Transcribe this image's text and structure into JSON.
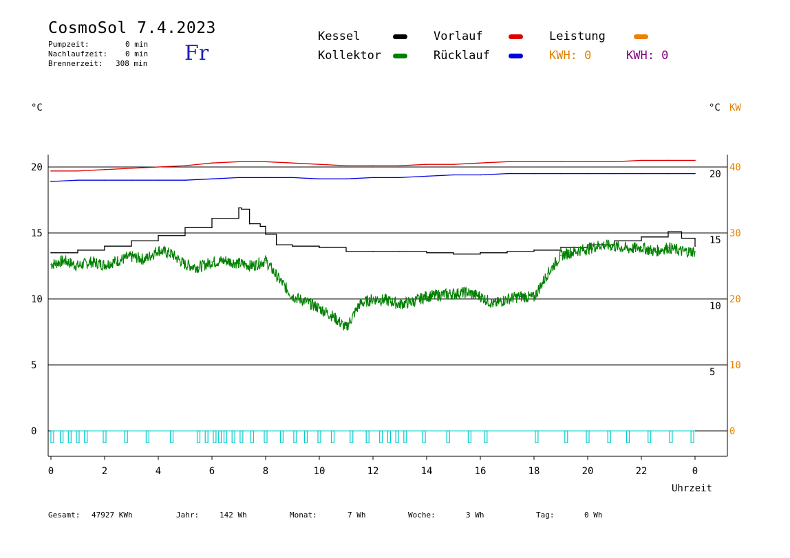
{
  "header": {
    "title": "CosmoSol 7.4.2023",
    "weekday": "Fr",
    "stats": [
      {
        "label": "Pumpzeit:",
        "value": "0 min"
      },
      {
        "label": "Nachlaufzeit:",
        "value": "0 min"
      },
      {
        "label": "Brennerzeit:",
        "value": "308 min"
      }
    ]
  },
  "legend": {
    "kessel": {
      "label": "Kessel",
      "color": "#000000"
    },
    "kollektor": {
      "label": "Kollektor",
      "color": "#008000"
    },
    "vorlauf": {
      "label": "Vorlauf",
      "color": "#e00000"
    },
    "ruecklauf": {
      "label": "Rücklauf",
      "color": "#0000e0"
    },
    "leistung": {
      "label": "Leistung",
      "color": "#f08000"
    },
    "kwh_orange": {
      "label": "KWH: 0",
      "color": "#e08000"
    },
    "kwh_purple": {
      "label": "KWH: 0",
      "color": "#800080"
    }
  },
  "axis_units": {
    "left": "°C",
    "right_c": "°C",
    "right_kw": "KW"
  },
  "chart_data": {
    "type": "line",
    "xlabel": "Uhrzeit",
    "x_ticks": [
      "0",
      "2",
      "4",
      "6",
      "8",
      "10",
      "12",
      "14",
      "16",
      "18",
      "20",
      "22",
      "0"
    ],
    "xlim": [
      0,
      24
    ],
    "left_axis": {
      "ylim": [
        -2,
        22
      ],
      "ticks": [
        "20",
        "15",
        "10",
        "5",
        "0"
      ],
      "tick_values": [
        20,
        15,
        10,
        5,
        0
      ]
    },
    "right_axis_c": {
      "ticks": [
        "20",
        "15",
        "10",
        "5"
      ],
      "tick_values": [
        20,
        15,
        10,
        5
      ]
    },
    "right_axis_kw": {
      "ticks": [
        "40",
        "30",
        "20",
        "10",
        "0"
      ],
      "tick_values": [
        40,
        30,
        20,
        10,
        0
      ],
      "color": "#e08000"
    },
    "grid": true,
    "series": [
      {
        "name": "Vorlauf",
        "color": "#e00000",
        "x": [
          0,
          1,
          2,
          3,
          4,
          5,
          6,
          7,
          8,
          9,
          10,
          11,
          12,
          13,
          14,
          15,
          16,
          17,
          18,
          19,
          20,
          21,
          22,
          23,
          24
        ],
        "y": [
          19.7,
          19.7,
          19.8,
          19.9,
          20.0,
          20.1,
          20.3,
          20.4,
          20.4,
          20.3,
          20.2,
          20.1,
          20.1,
          20.1,
          20.2,
          20.2,
          20.3,
          20.4,
          20.4,
          20.4,
          20.4,
          20.4,
          20.5,
          20.5,
          20.5
        ]
      },
      {
        "name": "Rücklauf",
        "color": "#0000e0",
        "x": [
          0,
          1,
          2,
          3,
          4,
          5,
          6,
          7,
          8,
          9,
          10,
          11,
          12,
          13,
          14,
          15,
          16,
          17,
          18,
          19,
          20,
          21,
          22,
          23,
          24
        ],
        "y": [
          18.9,
          19.0,
          19.0,
          19.0,
          19.0,
          19.0,
          19.1,
          19.2,
          19.2,
          19.2,
          19.1,
          19.1,
          19.2,
          19.2,
          19.3,
          19.4,
          19.4,
          19.5,
          19.5,
          19.5,
          19.5,
          19.5,
          19.5,
          19.5,
          19.5
        ]
      },
      {
        "name": "Kessel",
        "color": "#000000",
        "x": [
          0,
          1,
          2,
          3,
          4,
          5,
          6,
          7,
          7.1,
          7.4,
          7.8,
          8.0,
          8.4,
          9,
          10,
          11,
          12,
          13,
          14,
          15,
          16,
          17,
          18,
          19,
          20,
          21,
          22,
          23,
          23.5,
          24
        ],
        "y": [
          13.5,
          13.7,
          14.0,
          14.4,
          14.8,
          15.4,
          16.1,
          16.9,
          16.8,
          15.7,
          15.5,
          14.9,
          14.1,
          14.0,
          13.9,
          13.6,
          13.6,
          13.6,
          13.5,
          13.4,
          13.5,
          13.6,
          13.7,
          13.9,
          14.1,
          14.4,
          14.7,
          15.1,
          14.6,
          14.0
        ]
      },
      {
        "name": "Kollektor",
        "color": "#008000",
        "x": [
          0,
          0.5,
          1,
          1.5,
          2,
          2.5,
          3,
          3.5,
          4,
          4.5,
          5,
          5.5,
          6,
          6.5,
          7,
          7.5,
          8,
          8.5,
          9,
          9.5,
          10,
          10.5,
          11,
          11.5,
          12,
          12.5,
          13,
          13.5,
          14,
          14.5,
          15,
          15.5,
          16,
          16.5,
          17,
          17.5,
          18,
          18.5,
          19,
          19.5,
          20,
          20.5,
          21,
          21.5,
          22,
          22.5,
          23,
          23.5,
          24
        ],
        "y": [
          12.6,
          12.9,
          12.5,
          12.8,
          12.6,
          12.9,
          13.2,
          13.0,
          13.7,
          13.4,
          12.6,
          12.4,
          12.8,
          12.9,
          12.7,
          12.5,
          12.9,
          11.5,
          10.2,
          9.8,
          9.3,
          8.7,
          7.8,
          9.6,
          10.0,
          9.9,
          9.6,
          9.8,
          10.2,
          10.3,
          10.4,
          10.5,
          10.2,
          9.6,
          10.0,
          10.2,
          10.1,
          11.9,
          13.3,
          13.6,
          13.8,
          14.1,
          14.0,
          13.8,
          13.9,
          13.6,
          13.9,
          13.6,
          13.6
        ]
      },
      {
        "name": "Leistung",
        "color": "#00cccc",
        "type": "pulses",
        "pulses": [
          0.05,
          0.4,
          0.7,
          1.0,
          1.3,
          2.0,
          2.8,
          3.6,
          4.5,
          5.5,
          5.8,
          6.1,
          6.3,
          6.5,
          6.8,
          7.1,
          7.5,
          8.0,
          8.6,
          9.1,
          9.5,
          10.0,
          10.5,
          11.2,
          11.8,
          12.3,
          12.6,
          12.9,
          13.2,
          13.9,
          14.8,
          15.6,
          16.2,
          18.1,
          19.2,
          20.0,
          20.8,
          21.5,
          22.3,
          23.1,
          23.9
        ],
        "height": 0.9
      }
    ]
  },
  "footer": {
    "gesamt": {
      "label": "Gesamt:",
      "value": "47927 KWh"
    },
    "jahr": {
      "label": "Jahr:",
      "value": "142 Wh"
    },
    "monat": {
      "label": "Monat:",
      "value": "7 Wh"
    },
    "woche": {
      "label": "Woche:",
      "value": "3 Wh"
    },
    "tag": {
      "label": "Tag:",
      "value": "0 Wh"
    }
  }
}
